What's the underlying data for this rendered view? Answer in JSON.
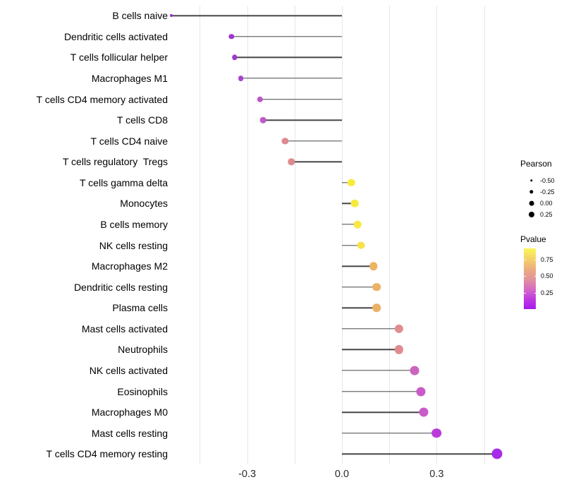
{
  "chart_data": {
    "type": "scatter",
    "variant": "lollipop",
    "title": "",
    "xlabel": "",
    "ylabel": "",
    "x_tick_labels": [
      "-0.3",
      "0.0",
      "0.3"
    ],
    "x_tick_values": [
      -0.3,
      0.0,
      0.3
    ],
    "xlim": [
      -0.59,
      0.55
    ],
    "gridline_values": [
      -0.45,
      -0.3,
      -0.15,
      0.0,
      0.15,
      0.3,
      0.45
    ],
    "grid_on": true,
    "stem_color": "#454545",
    "grid_color": "#e7e7e7",
    "points": [
      {
        "label": "B cells naive",
        "pearson": -0.54,
        "color": "#9b27da",
        "radius": 2.0
      },
      {
        "label": "Dendritic cells activated",
        "pearson": -0.35,
        "color": "#9d37ce",
        "radius": 3.7
      },
      {
        "label": "T cells follicular helper",
        "pearson": -0.34,
        "color": "#9e39cf",
        "radius": 3.7
      },
      {
        "label": "Macrophages M1",
        "pearson": -0.32,
        "color": "#a743d1",
        "radius": 3.9
      },
      {
        "label": "T cells CD4 memory activated",
        "pearson": -0.26,
        "color": "#bb58c7",
        "radius": 4.2
      },
      {
        "label": "T cells CD8",
        "pearson": -0.25,
        "color": "#bd5cc8",
        "radius": 4.3
      },
      {
        "label": "T cells CD4 naive",
        "pearson": -0.18,
        "color": "#dd8a93",
        "radius": 4.6
      },
      {
        "label": "T cells regulatory  Tregs",
        "pearson": -0.16,
        "color": "#de8b90",
        "radius": 4.7
      },
      {
        "label": "T cells gamma delta",
        "pearson": 0.03,
        "color": "#f8eb38",
        "radius": 5.2
      },
      {
        "label": "Monocytes",
        "pearson": 0.04,
        "color": "#f7ea3c",
        "radius": 5.3
      },
      {
        "label": "B cells memory",
        "pearson": 0.05,
        "color": "#f7e93e",
        "radius": 5.3
      },
      {
        "label": "NK cells resting",
        "pearson": 0.06,
        "color": "#f6e24a",
        "radius": 5.4
      },
      {
        "label": "Macrophages M2",
        "pearson": 0.1,
        "color": "#edb462",
        "radius": 5.7
      },
      {
        "label": "Dendritic cells resting",
        "pearson": 0.11,
        "color": "#ecb163",
        "radius": 5.8
      },
      {
        "label": "Plasma cells",
        "pearson": 0.11,
        "color": "#ecb065",
        "radius": 5.8
      },
      {
        "label": "Mast cells activated",
        "pearson": 0.18,
        "color": "#e18c91",
        "radius": 6.1
      },
      {
        "label": "Neutrophils",
        "pearson": 0.18,
        "color": "#e18b90",
        "radius": 6.1
      },
      {
        "label": "NK cells activated",
        "pearson": 0.23,
        "color": "#cc63bf",
        "radius": 6.4
      },
      {
        "label": "Eosinophils",
        "pearson": 0.25,
        "color": "#c95ac8",
        "radius": 6.5
      },
      {
        "label": "Macrophages M0",
        "pearson": 0.26,
        "color": "#c95bc9",
        "radius": 6.5
      },
      {
        "label": "Mast cells resting",
        "pearson": 0.3,
        "color": "#bb3bd9",
        "radius": 6.8
      },
      {
        "label": "T cells CD4 memory resting",
        "pearson": 0.49,
        "color": "#a82be8",
        "radius": 7.5
      }
    ]
  },
  "legend": {
    "pearson": {
      "title": "Pearson",
      "dot_color": "#000000",
      "items": [
        {
          "label": "-0.50",
          "diameter": 3.4
        },
        {
          "label": "-0.25",
          "diameter": 5.4
        },
        {
          "label": "0.00",
          "diameter": 6.8
        },
        {
          "label": "0.25",
          "diameter": 8.0
        }
      ]
    },
    "pvalue": {
      "title": "Pvalue",
      "ticks": [
        "0.75",
        "0.50",
        "0.25"
      ],
      "gradient_top_to_bottom": [
        "#fbf558",
        "#f4d469",
        "#edae7e",
        "#e29599",
        "#d66cc3",
        "#be3be0",
        "#a818f0"
      ]
    }
  }
}
